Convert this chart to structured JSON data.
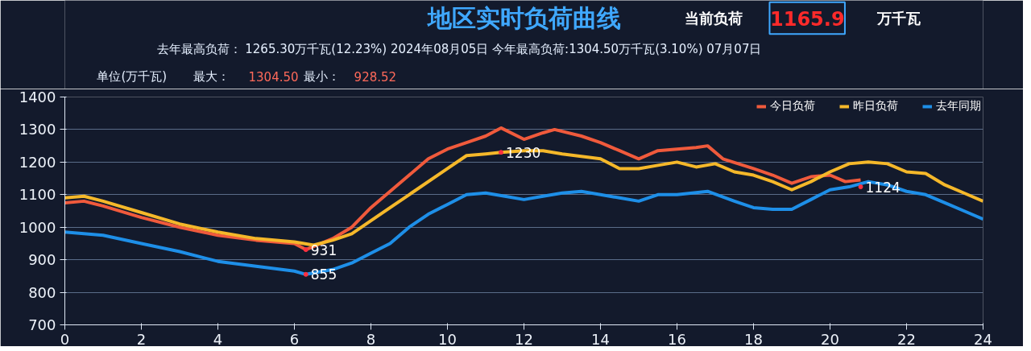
{
  "chart_data": {
    "type": "line",
    "title": "地区实时负荷曲线",
    "subtitle": "去年最高负荷：  1265.30万千瓦(12.23%)  2024年08月05日  今年最高负荷:1304.50万千瓦(3.10%)  07月07日",
    "ylabel": "单位(万千瓦)",
    "annotations": [
      "当前负荷",
      "1165.9",
      "万千瓦",
      "最大：",
      "1304.50",
      "最小：",
      "928.52",
      {
        "text": "931",
        "x": 6.3,
        "y": 931
      },
      {
        "text": "855",
        "x": 6.3,
        "y": 855
      },
      {
        "text": "1230",
        "x": 11.4,
        "y": 1230
      },
      {
        "text": "1124",
        "x": 20.8,
        "y": 1124
      }
    ],
    "xlim": [
      0,
      24
    ],
    "xticks": [
      0,
      2,
      4,
      6,
      8,
      10,
      12,
      14,
      16,
      18,
      20,
      22,
      24
    ],
    "ylim": [
      700,
      1400
    ],
    "yticks": [
      700,
      800,
      900,
      1000,
      1100,
      1200,
      1300,
      1400
    ],
    "grid": "y",
    "legend": "top right",
    "marker": "none",
    "line_style": "solid",
    "series": [
      {
        "name": "今日负荷",
        "color": "#f05a3c",
        "x": [
          0,
          0.5,
          1,
          2,
          3,
          4,
          5,
          6,
          6.3,
          7,
          7.5,
          8,
          8.5,
          9,
          9.5,
          10,
          10.5,
          11,
          11.4,
          12,
          12.5,
          12.8,
          13.5,
          14,
          14.5,
          15,
          15.5,
          16,
          16.5,
          16.8,
          17.2,
          18,
          18.5,
          19,
          19.5,
          20,
          20.4,
          20.8
        ],
        "values": [
          1075,
          1080,
          1065,
          1030,
          1000,
          975,
          960,
          950,
          931,
          965,
          1000,
          1060,
          1110,
          1160,
          1210,
          1240,
          1260,
          1280,
          1305,
          1270,
          1290,
          1300,
          1280,
          1260,
          1235,
          1210,
          1235,
          1240,
          1245,
          1250,
          1210,
          1180,
          1160,
          1135,
          1155,
          1160,
          1140,
          1145
        ]
      },
      {
        "name": "昨日负荷",
        "color": "#f5b82a",
        "x": [
          0,
          0.5,
          1,
          2,
          3,
          4,
          5,
          6,
          6.5,
          7,
          7.5,
          8,
          9,
          10,
          10.5,
          11,
          11.4,
          12,
          12.5,
          13,
          14,
          14.5,
          15,
          15.5,
          16,
          16.5,
          17,
          17.5,
          18,
          18.5,
          19,
          19.5,
          20,
          20.5,
          21,
          21.5,
          22,
          22.5,
          23,
          23.5,
          24
        ],
        "values": [
          1090,
          1095,
          1080,
          1045,
          1010,
          985,
          965,
          955,
          945,
          960,
          980,
          1020,
          1100,
          1180,
          1220,
          1225,
          1230,
          1235,
          1235,
          1225,
          1210,
          1180,
          1180,
          1190,
          1200,
          1185,
          1195,
          1170,
          1160,
          1140,
          1115,
          1140,
          1170,
          1195,
          1200,
          1195,
          1170,
          1165,
          1130,
          1105,
          1080
        ]
      },
      {
        "name": "去年同期",
        "color": "#1e8fe8",
        "x": [
          0,
          1,
          2,
          3,
          4,
          5,
          6,
          6.3,
          7,
          7.5,
          8,
          8.5,
          9,
          9.5,
          10,
          10.5,
          11,
          11.5,
          12,
          12.5,
          13,
          13.5,
          14,
          14.5,
          15,
          15.5,
          16,
          16.8,
          17.5,
          18,
          18.5,
          19,
          19.5,
          20,
          20.5,
          21,
          21.5,
          22,
          22.5,
          23,
          23.5,
          24
        ],
        "values": [
          985,
          975,
          950,
          925,
          895,
          880,
          865,
          855,
          870,
          890,
          920,
          950,
          1000,
          1040,
          1070,
          1100,
          1105,
          1095,
          1085,
          1095,
          1105,
          1110,
          1100,
          1090,
          1080,
          1100,
          1100,
          1110,
          1080,
          1060,
          1055,
          1055,
          1085,
          1115,
          1124,
          1140,
          1130,
          1110,
          1100,
          1075,
          1050,
          1025
        ]
      }
    ]
  }
}
